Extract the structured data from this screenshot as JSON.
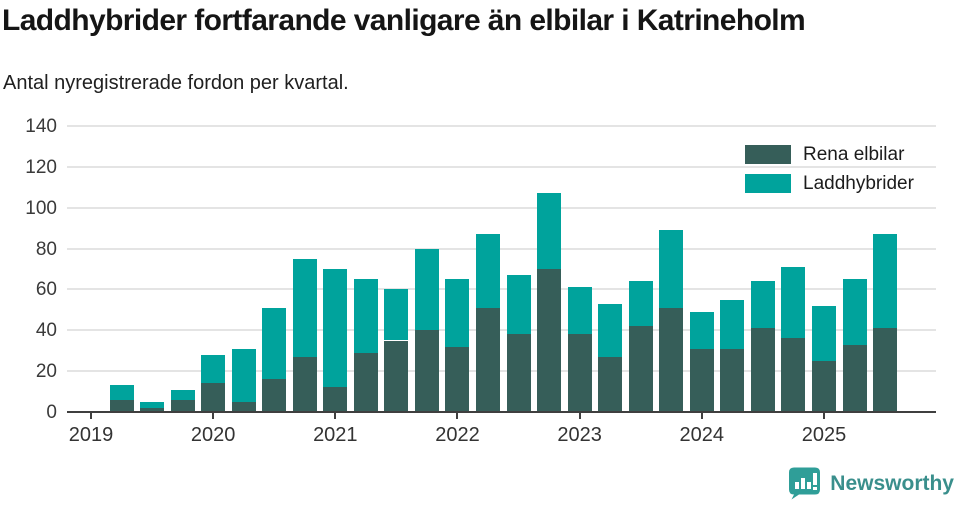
{
  "header": {
    "title": "Laddhybrider fortfarande vanligare än elbilar i Katrineholm",
    "subtitle": "Antal nyregistrerade fordon per kvartal."
  },
  "legend": {
    "items": [
      {
        "label": "Rena elbilar",
        "color": "#365e59"
      },
      {
        "label": "Laddhybrider",
        "color": "#00a39c"
      }
    ]
  },
  "footer": {
    "brand_name": "Newsworthy",
    "brand_color": "#3a8f8c",
    "logo_color": "#2f9e98"
  },
  "colors": {
    "electric": "#365e59",
    "hybrid": "#00a39c",
    "gridline": "#e4e4e4",
    "axis": "#3f3f3f",
    "background": "#ffffff"
  },
  "chart_data": {
    "type": "bar",
    "stacked": true,
    "title": "Laddhybrider fortfarande vanligare än elbilar i Katrineholm",
    "subtitle": "Antal nyregistrerade fordon per kvartal.",
    "xlabel": "",
    "ylabel": "",
    "ylim": [
      0,
      140
    ],
    "y_ticks": [
      0,
      20,
      40,
      60,
      80,
      100,
      120,
      140
    ],
    "grid": true,
    "legend_position": "upper right",
    "x_year_labels": [
      "2019",
      "2020",
      "2021",
      "2022",
      "2023",
      "2024",
      "2025"
    ],
    "categories": [
      "2019 Q1",
      "2019 Q2",
      "2019 Q3",
      "2019 Q4",
      "2020 Q1",
      "2020 Q2",
      "2020 Q3",
      "2020 Q4",
      "2021 Q1",
      "2021 Q2",
      "2021 Q3",
      "2021 Q4",
      "2022 Q1",
      "2022 Q2",
      "2022 Q3",
      "2022 Q4",
      "2023 Q1",
      "2023 Q2",
      "2023 Q3",
      "2023 Q4",
      "2024 Q1",
      "2024 Q2",
      "2024 Q3",
      "2024 Q4",
      "2025 Q1",
      "2025 Q2",
      "2025 Q3"
    ],
    "series": [
      {
        "name": "Rena elbilar",
        "color": "#365e59",
        "values": [
          0,
          6,
          2,
          6,
          14,
          5,
          16,
          27,
          12,
          29,
          35,
          40,
          32,
          51,
          38,
          70,
          38,
          27,
          42,
          51,
          31,
          31,
          41,
          36,
          25,
          33,
          41
        ]
      },
      {
        "name": "Laddhybrider",
        "color": "#00a39c",
        "values": [
          0,
          7,
          3,
          5,
          14,
          26,
          35,
          48,
          58,
          36,
          25,
          40,
          33,
          36,
          29,
          37,
          23,
          26,
          22,
          38,
          18,
          24,
          23,
          35,
          27,
          32,
          46
        ]
      }
    ],
    "totals": [
      0,
      13,
      5,
      11,
      28,
      31,
      51,
      75,
      70,
      65,
      60,
      80,
      65,
      87,
      67,
      107,
      61,
      53,
      64,
      89,
      49,
      55,
      64,
      71,
      52,
      65,
      87
    ]
  }
}
